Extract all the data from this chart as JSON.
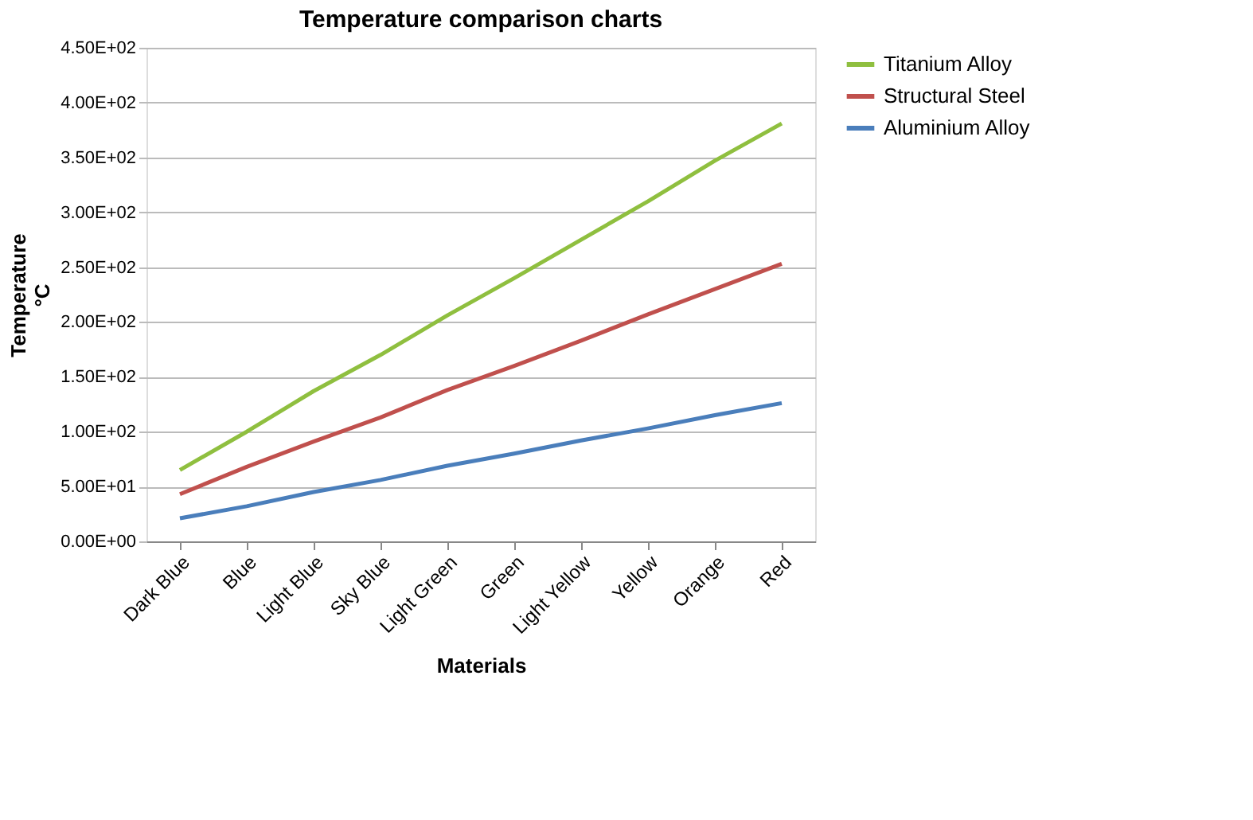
{
  "chart_data": {
    "type": "line",
    "title": "Temperature comparison charts",
    "xlabel": "Materials",
    "ylabel": "Temperature °C",
    "categories": [
      "Dark Blue",
      "Blue",
      "Light Blue",
      "Sky Blue",
      "Light Green",
      "Green",
      "Light Yellow",
      "Yellow",
      "Orange",
      "Red"
    ],
    "series": [
      {
        "name": "Titanium Alloy",
        "color": "#8fbf3f",
        "values": [
          65,
          100,
          137,
          170,
          206,
          240,
          275,
          310,
          347,
          381
        ]
      },
      {
        "name": "Structural Steel",
        "color": "#c0504d",
        "values": [
          43,
          68,
          91,
          113,
          138,
          160,
          183,
          207,
          230,
          253
        ]
      },
      {
        "name": "Aluminium Alloy",
        "color": "#4a7ebb",
        "values": [
          21,
          32,
          45,
          56,
          69,
          80,
          92,
          103,
          115,
          126
        ]
      }
    ],
    "ylim": [
      0,
      450
    ],
    "yticks": [
      {
        "value": 0,
        "label": "0.00E+00"
      },
      {
        "value": 50,
        "label": "5.00E+01"
      },
      {
        "value": 100,
        "label": "1.00E+02"
      },
      {
        "value": 150,
        "label": "1.50E+02"
      },
      {
        "value": 200,
        "label": "2.00E+02"
      },
      {
        "value": 250,
        "label": "2.50E+02"
      },
      {
        "value": 300,
        "label": "3.00E+02"
      },
      {
        "value": 350,
        "label": "3.50E+02"
      },
      {
        "value": 400,
        "label": "4.00E+02"
      },
      {
        "value": 450,
        "label": "4.50E+02"
      }
    ],
    "grid": "y",
    "legend": "right",
    "marker": "none",
    "line_style": "solid"
  }
}
